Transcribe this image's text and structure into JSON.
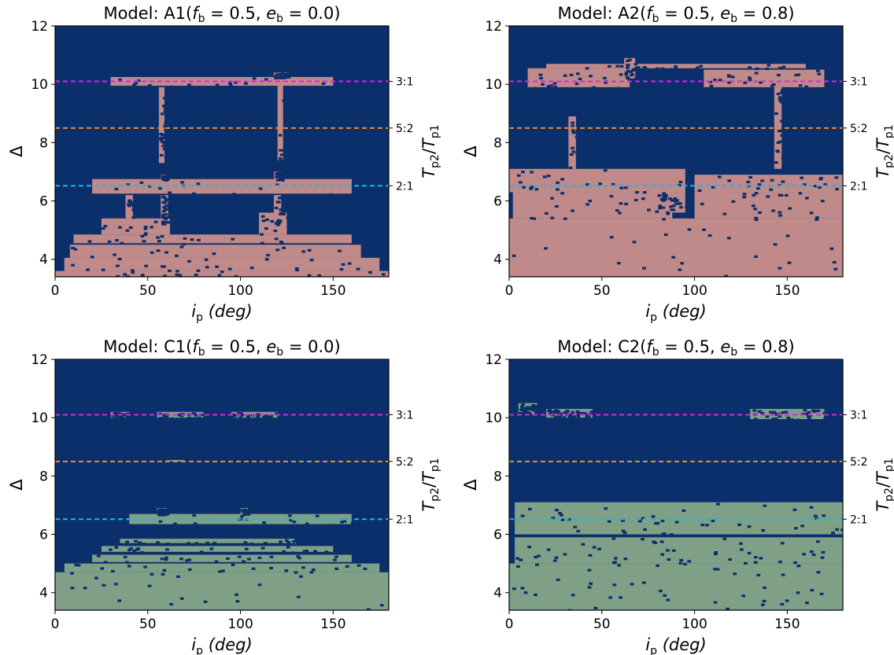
{
  "chart_data": [
    {
      "type": "heatmap",
      "title_prefix": "Model: A1",
      "f_b": "0.5",
      "e_b": "0.0",
      "xlabel_var": "i",
      "xlabel_sub": "p",
      "xlabel_unit": "(deg)",
      "ylabel": "Δ",
      "y2label": "T_p2/T_p1",
      "xlim": [
        0,
        180
      ],
      "ylim": [
        3.4,
        12
      ],
      "xticks": [
        0,
        50,
        100,
        150
      ],
      "yticks": [
        4,
        6,
        8,
        10,
        12
      ],
      "background_color": "#0a2f6b",
      "fill_color": "#c08a8a",
      "resonances": [
        {
          "label": "3:1",
          "value": 10.1,
          "color": "#e020e0"
        },
        {
          "label": "5:2",
          "value": 8.5,
          "color": "#f08a28"
        },
        {
          "label": "2:1",
          "value": 6.52,
          "color": "#20b8d8"
        }
      ],
      "regions": [
        {
          "x": [
            0,
            180
          ],
          "y": [
            3.4,
            3.6
          ]
        },
        {
          "x": [
            5,
            175
          ],
          "y": [
            3.6,
            4.05
          ]
        },
        {
          "x": [
            8,
            165
          ],
          "y": [
            4.05,
            4.5
          ]
        },
        {
          "x": [
            10,
            160
          ],
          "y": [
            4.55,
            4.85
          ]
        },
        {
          "x": [
            25,
            62
          ],
          "y": [
            4.85,
            5.4
          ]
        },
        {
          "x": [
            110,
            125
          ],
          "y": [
            4.85,
            5.6
          ]
        },
        {
          "x": [
            38,
            42
          ],
          "y": [
            5.4,
            6.2
          ]
        },
        {
          "x": [
            57,
            61
          ],
          "y": [
            5.2,
            6.2
          ]
        },
        {
          "x": [
            118,
            122
          ],
          "y": [
            5.2,
            6.2
          ]
        },
        {
          "x": [
            20,
            160
          ],
          "y": [
            6.25,
            6.75
          ]
        },
        {
          "x": [
            57,
            60
          ],
          "y": [
            6.75,
            6.9
          ]
        },
        {
          "x": [
            118,
            122
          ],
          "y": [
            6.75,
            7.0
          ]
        },
        {
          "x": [
            56,
            59
          ],
          "y": [
            7.3,
            9.9
          ]
        },
        {
          "x": [
            120,
            123
          ],
          "y": [
            7.4,
            10.0
          ]
        },
        {
          "x": [
            30,
            150
          ],
          "y": [
            9.95,
            10.25
          ]
        },
        {
          "x": [
            118,
            126
          ],
          "y": [
            10.25,
            10.4
          ]
        }
      ]
    },
    {
      "type": "heatmap",
      "title_prefix": "Model: A2",
      "f_b": "0.5",
      "e_b": "0.8",
      "xlabel_var": "i",
      "xlabel_sub": "p",
      "xlabel_unit": "(deg)",
      "ylabel": "Δ",
      "y2label": "T_p2/T_p1",
      "xlim": [
        0,
        180
      ],
      "ylim": [
        3.4,
        12
      ],
      "xticks": [
        0,
        50,
        100,
        150
      ],
      "yticks": [
        4,
        6,
        8,
        10,
        12
      ],
      "background_color": "#0a2f6b",
      "fill_color": "#c08a8a",
      "resonances": [
        {
          "label": "3:1",
          "value": 10.1,
          "color": "#e020e0"
        },
        {
          "label": "5:2",
          "value": 8.5,
          "color": "#f08a28"
        },
        {
          "label": "2:1",
          "value": 6.52,
          "color": "#20b8d8"
        }
      ],
      "regions": [
        {
          "x": [
            0,
            180
          ],
          "y": [
            3.4,
            5.4
          ]
        },
        {
          "x": [
            2,
            88
          ],
          "y": [
            5.4,
            6.3
          ]
        },
        {
          "x": [
            100,
            180
          ],
          "y": [
            5.4,
            6.3
          ]
        },
        {
          "x": [
            0,
            95
          ],
          "y": [
            6.3,
            7.1
          ]
        },
        {
          "x": [
            100,
            180
          ],
          "y": [
            6.3,
            6.9
          ]
        },
        {
          "x": [
            80,
            95
          ],
          "y": [
            5.6,
            6.3
          ]
        },
        {
          "x": [
            32,
            36
          ],
          "y": [
            7.1,
            8.9
          ]
        },
        {
          "x": [
            143,
            147
          ],
          "y": [
            7.1,
            9.9
          ]
        },
        {
          "x": [
            10,
            65
          ],
          "y": [
            9.9,
            10.55
          ]
        },
        {
          "x": [
            105,
            170
          ],
          "y": [
            9.9,
            10.5
          ]
        },
        {
          "x": [
            20,
            160
          ],
          "y": [
            10.55,
            10.7
          ]
        },
        {
          "x": [
            62,
            68
          ],
          "y": [
            10.2,
            10.9
          ]
        }
      ]
    },
    {
      "type": "heatmap",
      "title_prefix": "Model: C1",
      "f_b": "0.5",
      "e_b": "0.0",
      "xlabel_var": "i",
      "xlabel_sub": "p",
      "xlabel_unit": "(deg)",
      "ylabel": "Δ",
      "y2label": "T_p2/T_p1",
      "xlim": [
        0,
        180
      ],
      "ylim": [
        3.4,
        12
      ],
      "xticks": [
        0,
        50,
        100,
        150
      ],
      "yticks": [
        4,
        6,
        8,
        10,
        12
      ],
      "background_color": "#0a2f6b",
      "fill_color": "#7f9f86",
      "resonances": [
        {
          "label": "3:1",
          "value": 10.1,
          "color": "#e020e0"
        },
        {
          "label": "5:2",
          "value": 8.5,
          "color": "#f08a28"
        },
        {
          "label": "2:1",
          "value": 6.52,
          "color": "#20b8d8"
        }
      ],
      "regions": [
        {
          "x": [
            0,
            180
          ],
          "y": [
            3.4,
            4.7
          ]
        },
        {
          "x": [
            5,
            175
          ],
          "y": [
            4.7,
            5.0
          ]
        },
        {
          "x": [
            20,
            160
          ],
          "y": [
            5.05,
            5.3
          ]
        },
        {
          "x": [
            25,
            150
          ],
          "y": [
            5.4,
            5.6
          ]
        },
        {
          "x": [
            35,
            130
          ],
          "y": [
            5.7,
            5.85
          ]
        },
        {
          "x": [
            40,
            160
          ],
          "y": [
            6.35,
            6.7
          ]
        },
        {
          "x": [
            55,
            60
          ],
          "y": [
            6.7,
            6.9
          ]
        },
        {
          "x": [
            100,
            104
          ],
          "y": [
            6.7,
            6.9
          ]
        },
        {
          "x": [
            30,
            40
          ],
          "y": [
            10.0,
            10.2
          ]
        },
        {
          "x": [
            55,
            80
          ],
          "y": [
            10.0,
            10.2
          ]
        },
        {
          "x": [
            95,
            120
          ],
          "y": [
            10.0,
            10.2
          ]
        },
        {
          "x": [
            60,
            70
          ],
          "y": [
            8.45,
            8.55
          ]
        }
      ]
    },
    {
      "type": "heatmap",
      "title_prefix": "Model: C2",
      "f_b": "0.5",
      "e_b": "0.8",
      "xlabel_var": "i",
      "xlabel_sub": "p",
      "xlabel_unit": "(deg)",
      "ylabel": "Δ",
      "y2label": "T_p2/T_p1",
      "xlim": [
        0,
        180
      ],
      "ylim": [
        3.4,
        12
      ],
      "xticks": [
        0,
        50,
        100,
        150
      ],
      "yticks": [
        4,
        6,
        8,
        10,
        12
      ],
      "background_color": "#0a2f6b",
      "fill_color": "#7f9f86",
      "resonances": [
        {
          "label": "3:1",
          "value": 10.1,
          "color": "#e020e0"
        },
        {
          "label": "5:2",
          "value": 8.5,
          "color": "#f08a28"
        },
        {
          "label": "2:1",
          "value": 6.52,
          "color": "#20b8d8"
        }
      ],
      "regions": [
        {
          "x": [
            0,
            180
          ],
          "y": [
            3.4,
            5.0
          ]
        },
        {
          "x": [
            3,
            180
          ],
          "y": [
            5.0,
            5.9
          ]
        },
        {
          "x": [
            3,
            180
          ],
          "y": [
            6.0,
            7.1
          ]
        },
        {
          "x": [
            5,
            15
          ],
          "y": [
            10.1,
            10.5
          ]
        },
        {
          "x": [
            20,
            45
          ],
          "y": [
            10.0,
            10.3
          ]
        },
        {
          "x": [
            130,
            170
          ],
          "y": [
            9.95,
            10.3
          ]
        }
      ]
    }
  ]
}
